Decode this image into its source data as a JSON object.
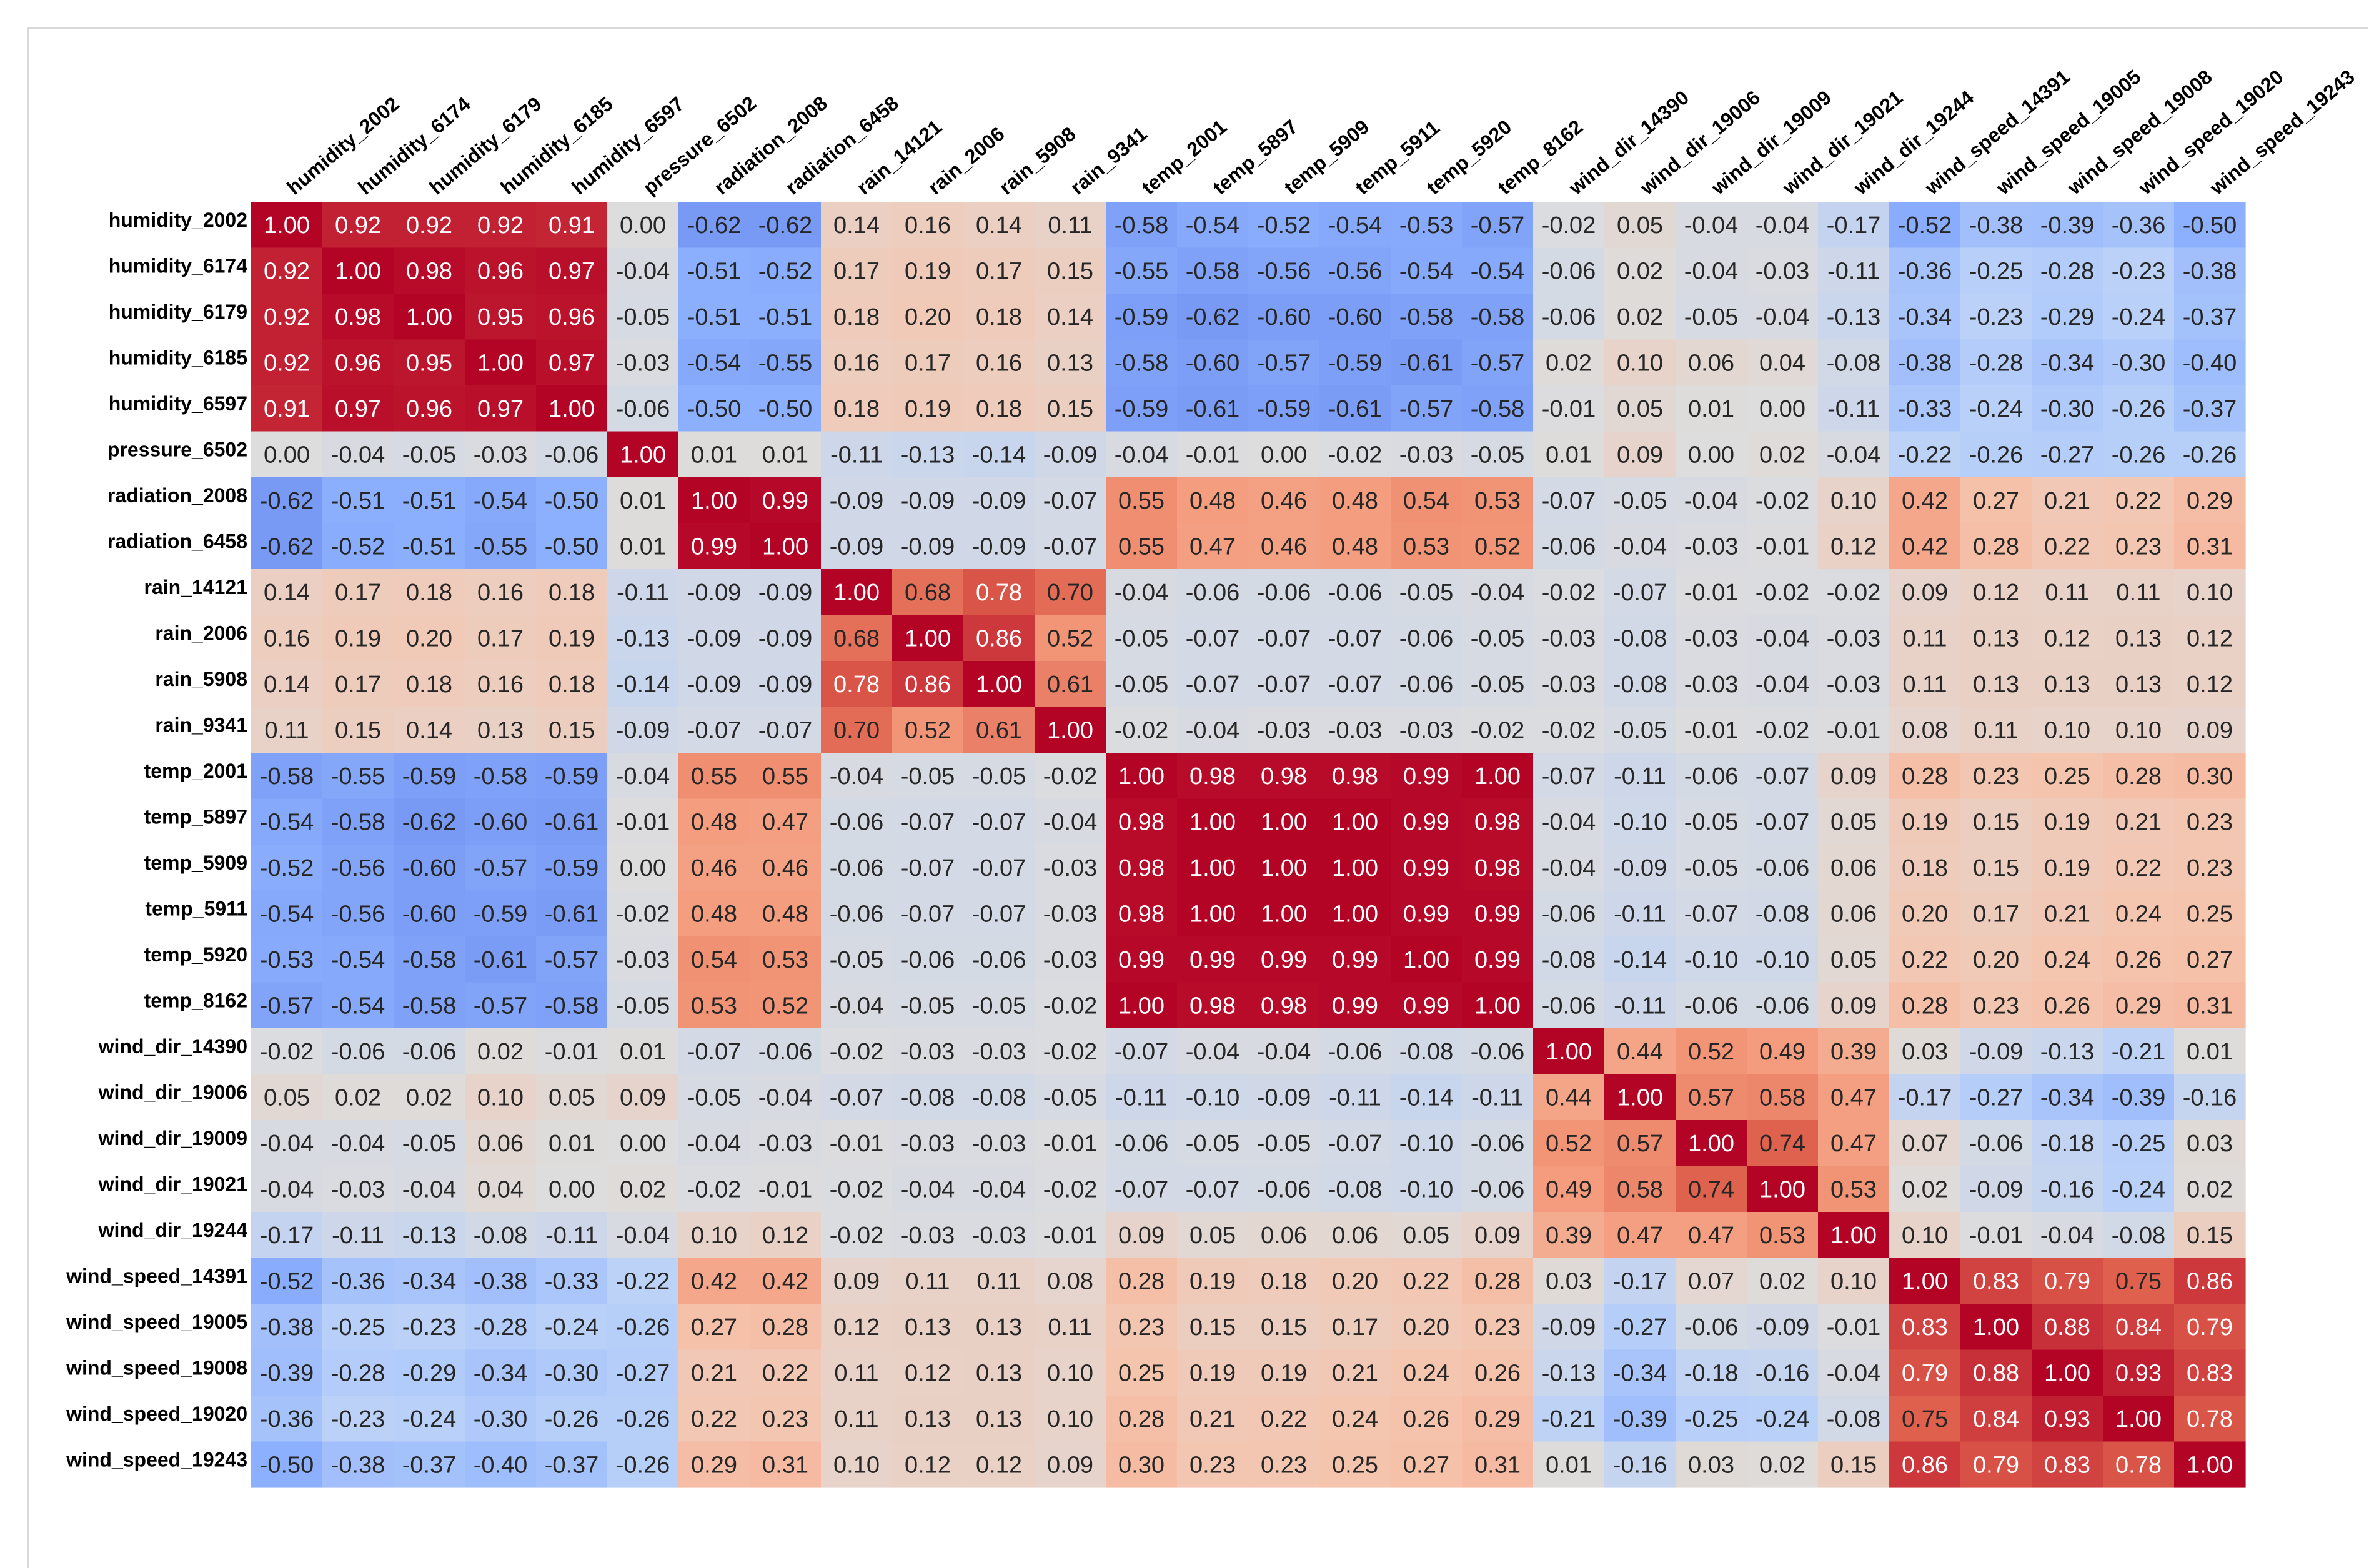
{
  "chart_data": {
    "type": "heatmap",
    "colormap": "coolwarm",
    "vmin": -1,
    "vmax": 1,
    "labels": [
      "humidity_2002",
      "humidity_6174",
      "humidity_6179",
      "humidity_6185",
      "humidity_6597",
      "pressure_6502",
      "radiation_2008",
      "radiation_6458",
      "rain_14121",
      "rain_2006",
      "rain_5908",
      "rain_9341",
      "temp_2001",
      "temp_5897",
      "temp_5909",
      "temp_5911",
      "temp_5920",
      "temp_8162",
      "wind_dir_14390",
      "wind_dir_19006",
      "wind_dir_19009",
      "wind_dir_19021",
      "wind_dir_19244",
      "wind_speed_14391",
      "wind_speed_19005",
      "wind_speed_19008",
      "wind_speed_19020",
      "wind_speed_19243"
    ],
    "matrix": [
      [
        1.0,
        0.92,
        0.92,
        0.92,
        0.91,
        0.0,
        -0.62,
        -0.62,
        0.14,
        0.16,
        0.14,
        0.11,
        -0.58,
        -0.54,
        -0.52,
        -0.54,
        -0.53,
        -0.57,
        -0.02,
        0.05,
        -0.04,
        -0.04,
        -0.17,
        -0.52,
        -0.38,
        -0.39,
        -0.36,
        -0.5
      ],
      [
        0.92,
        1.0,
        0.98,
        0.96,
        0.97,
        -0.04,
        -0.51,
        -0.52,
        0.17,
        0.19,
        0.17,
        0.15,
        -0.55,
        -0.58,
        -0.56,
        -0.56,
        -0.54,
        -0.54,
        -0.06,
        0.02,
        -0.04,
        -0.03,
        -0.11,
        -0.36,
        -0.25,
        -0.28,
        -0.23,
        -0.38
      ],
      [
        0.92,
        0.98,
        1.0,
        0.95,
        0.96,
        -0.05,
        -0.51,
        -0.51,
        0.18,
        0.2,
        0.18,
        0.14,
        -0.59,
        -0.62,
        -0.6,
        -0.6,
        -0.58,
        -0.58,
        -0.06,
        0.02,
        -0.05,
        -0.04,
        -0.13,
        -0.34,
        -0.23,
        -0.29,
        -0.24,
        -0.37
      ],
      [
        0.92,
        0.96,
        0.95,
        1.0,
        0.97,
        -0.03,
        -0.54,
        -0.55,
        0.16,
        0.17,
        0.16,
        0.13,
        -0.58,
        -0.6,
        -0.57,
        -0.59,
        -0.61,
        -0.57,
        0.02,
        0.1,
        0.06,
        0.04,
        -0.08,
        -0.38,
        -0.28,
        -0.34,
        -0.3,
        -0.4
      ],
      [
        0.91,
        0.97,
        0.96,
        0.97,
        1.0,
        -0.06,
        -0.5,
        -0.5,
        0.18,
        0.19,
        0.18,
        0.15,
        -0.59,
        -0.61,
        -0.59,
        -0.61,
        -0.57,
        -0.58,
        -0.01,
        0.05,
        0.01,
        0.0,
        -0.11,
        -0.33,
        -0.24,
        -0.3,
        -0.26,
        -0.37
      ],
      [
        0.0,
        -0.04,
        -0.05,
        -0.03,
        -0.06,
        1.0,
        0.01,
        0.01,
        -0.11,
        -0.13,
        -0.14,
        -0.09,
        -0.04,
        -0.01,
        0.0,
        -0.02,
        -0.03,
        -0.05,
        0.01,
        0.09,
        0.0,
        0.02,
        -0.04,
        -0.22,
        -0.26,
        -0.27,
        -0.26,
        -0.26
      ],
      [
        -0.62,
        -0.51,
        -0.51,
        -0.54,
        -0.5,
        0.01,
        1.0,
        0.99,
        -0.09,
        -0.09,
        -0.09,
        -0.07,
        0.55,
        0.48,
        0.46,
        0.48,
        0.54,
        0.53,
        -0.07,
        -0.05,
        -0.04,
        -0.02,
        0.1,
        0.42,
        0.27,
        0.21,
        0.22,
        0.29
      ],
      [
        -0.62,
        -0.52,
        -0.51,
        -0.55,
        -0.5,
        0.01,
        0.99,
        1.0,
        -0.09,
        -0.09,
        -0.09,
        -0.07,
        0.55,
        0.47,
        0.46,
        0.48,
        0.53,
        0.52,
        -0.06,
        -0.04,
        -0.03,
        -0.01,
        0.12,
        0.42,
        0.28,
        0.22,
        0.23,
        0.31
      ],
      [
        0.14,
        0.17,
        0.18,
        0.16,
        0.18,
        -0.11,
        -0.09,
        -0.09,
        1.0,
        0.68,
        0.78,
        0.7,
        -0.04,
        -0.06,
        -0.06,
        -0.06,
        -0.05,
        -0.04,
        -0.02,
        -0.07,
        -0.01,
        -0.02,
        -0.02,
        0.09,
        0.12,
        0.11,
        0.11,
        0.1
      ],
      [
        0.16,
        0.19,
        0.2,
        0.17,
        0.19,
        -0.13,
        -0.09,
        -0.09,
        0.68,
        1.0,
        0.86,
        0.52,
        -0.05,
        -0.07,
        -0.07,
        -0.07,
        -0.06,
        -0.05,
        -0.03,
        -0.08,
        -0.03,
        -0.04,
        -0.03,
        0.11,
        0.13,
        0.12,
        0.13,
        0.12
      ],
      [
        0.14,
        0.17,
        0.18,
        0.16,
        0.18,
        -0.14,
        -0.09,
        -0.09,
        0.78,
        0.86,
        1.0,
        0.61,
        -0.05,
        -0.07,
        -0.07,
        -0.07,
        -0.06,
        -0.05,
        -0.03,
        -0.08,
        -0.03,
        -0.04,
        -0.03,
        0.11,
        0.13,
        0.13,
        0.13,
        0.12
      ],
      [
        0.11,
        0.15,
        0.14,
        0.13,
        0.15,
        -0.09,
        -0.07,
        -0.07,
        0.7,
        0.52,
        0.61,
        1.0,
        -0.02,
        -0.04,
        -0.03,
        -0.03,
        -0.03,
        -0.02,
        -0.02,
        -0.05,
        -0.01,
        -0.02,
        -0.01,
        0.08,
        0.11,
        0.1,
        0.1,
        0.09
      ],
      [
        -0.58,
        -0.55,
        -0.59,
        -0.58,
        -0.59,
        -0.04,
        0.55,
        0.55,
        -0.04,
        -0.05,
        -0.05,
        -0.02,
        1.0,
        0.98,
        0.98,
        0.98,
        0.99,
        1.0,
        -0.07,
        -0.11,
        -0.06,
        -0.07,
        0.09,
        0.28,
        0.23,
        0.25,
        0.28,
        0.3
      ],
      [
        -0.54,
        -0.58,
        -0.62,
        -0.6,
        -0.61,
        -0.01,
        0.48,
        0.47,
        -0.06,
        -0.07,
        -0.07,
        -0.04,
        0.98,
        1.0,
        1.0,
        1.0,
        0.99,
        0.98,
        -0.04,
        -0.1,
        -0.05,
        -0.07,
        0.05,
        0.19,
        0.15,
        0.19,
        0.21,
        0.23
      ],
      [
        -0.52,
        -0.56,
        -0.6,
        -0.57,
        -0.59,
        0.0,
        0.46,
        0.46,
        -0.06,
        -0.07,
        -0.07,
        -0.03,
        0.98,
        1.0,
        1.0,
        1.0,
        0.99,
        0.98,
        -0.04,
        -0.09,
        -0.05,
        -0.06,
        0.06,
        0.18,
        0.15,
        0.19,
        0.22,
        0.23
      ],
      [
        -0.54,
        -0.56,
        -0.6,
        -0.59,
        -0.61,
        -0.02,
        0.48,
        0.48,
        -0.06,
        -0.07,
        -0.07,
        -0.03,
        0.98,
        1.0,
        1.0,
        1.0,
        0.99,
        0.99,
        -0.06,
        -0.11,
        -0.07,
        -0.08,
        0.06,
        0.2,
        0.17,
        0.21,
        0.24,
        0.25
      ],
      [
        -0.53,
        -0.54,
        -0.58,
        -0.61,
        -0.57,
        -0.03,
        0.54,
        0.53,
        -0.05,
        -0.06,
        -0.06,
        -0.03,
        0.99,
        0.99,
        0.99,
        0.99,
        1.0,
        0.99,
        -0.08,
        -0.14,
        -0.1,
        -0.1,
        0.05,
        0.22,
        0.2,
        0.24,
        0.26,
        0.27
      ],
      [
        -0.57,
        -0.54,
        -0.58,
        -0.57,
        -0.58,
        -0.05,
        0.53,
        0.52,
        -0.04,
        -0.05,
        -0.05,
        -0.02,
        1.0,
        0.98,
        0.98,
        0.99,
        0.99,
        1.0,
        -0.06,
        -0.11,
        -0.06,
        -0.06,
        0.09,
        0.28,
        0.23,
        0.26,
        0.29,
        0.31
      ],
      [
        -0.02,
        -0.06,
        -0.06,
        0.02,
        -0.01,
        0.01,
        -0.07,
        -0.06,
        -0.02,
        -0.03,
        -0.03,
        -0.02,
        -0.07,
        -0.04,
        -0.04,
        -0.06,
        -0.08,
        -0.06,
        1.0,
        0.44,
        0.52,
        0.49,
        0.39,
        0.03,
        -0.09,
        -0.13,
        -0.21,
        0.01
      ],
      [
        0.05,
        0.02,
        0.02,
        0.1,
        0.05,
        0.09,
        -0.05,
        -0.04,
        -0.07,
        -0.08,
        -0.08,
        -0.05,
        -0.11,
        -0.1,
        -0.09,
        -0.11,
        -0.14,
        -0.11,
        0.44,
        1.0,
        0.57,
        0.58,
        0.47,
        -0.17,
        -0.27,
        -0.34,
        -0.39,
        -0.16
      ],
      [
        -0.04,
        -0.04,
        -0.05,
        0.06,
        0.01,
        0.0,
        -0.04,
        -0.03,
        -0.01,
        -0.03,
        -0.03,
        -0.01,
        -0.06,
        -0.05,
        -0.05,
        -0.07,
        -0.1,
        -0.06,
        0.52,
        0.57,
        1.0,
        0.74,
        0.47,
        0.07,
        -0.06,
        -0.18,
        -0.25,
        0.03
      ],
      [
        -0.04,
        -0.03,
        -0.04,
        0.04,
        0.0,
        0.02,
        -0.02,
        -0.01,
        -0.02,
        -0.04,
        -0.04,
        -0.02,
        -0.07,
        -0.07,
        -0.06,
        -0.08,
        -0.1,
        -0.06,
        0.49,
        0.58,
        0.74,
        1.0,
        0.53,
        0.02,
        -0.09,
        -0.16,
        -0.24,
        0.02
      ],
      [
        -0.17,
        -0.11,
        -0.13,
        -0.08,
        -0.11,
        -0.04,
        0.1,
        0.12,
        -0.02,
        -0.03,
        -0.03,
        -0.01,
        0.09,
        0.05,
        0.06,
        0.06,
        0.05,
        0.09,
        0.39,
        0.47,
        0.47,
        0.53,
        1.0,
        0.1,
        -0.01,
        -0.04,
        -0.08,
        0.15
      ],
      [
        -0.52,
        -0.36,
        -0.34,
        -0.38,
        -0.33,
        -0.22,
        0.42,
        0.42,
        0.09,
        0.11,
        0.11,
        0.08,
        0.28,
        0.19,
        0.18,
        0.2,
        0.22,
        0.28,
        0.03,
        -0.17,
        0.07,
        0.02,
        0.1,
        1.0,
        0.83,
        0.79,
        0.75,
        0.86
      ],
      [
        -0.38,
        -0.25,
        -0.23,
        -0.28,
        -0.24,
        -0.26,
        0.27,
        0.28,
        0.12,
        0.13,
        0.13,
        0.11,
        0.23,
        0.15,
        0.15,
        0.17,
        0.2,
        0.23,
        -0.09,
        -0.27,
        -0.06,
        -0.09,
        -0.01,
        0.83,
        1.0,
        0.88,
        0.84,
        0.79
      ],
      [
        -0.39,
        -0.28,
        -0.29,
        -0.34,
        -0.3,
        -0.27,
        0.21,
        0.22,
        0.11,
        0.12,
        0.13,
        0.1,
        0.25,
        0.19,
        0.19,
        0.21,
        0.24,
        0.26,
        -0.13,
        -0.34,
        -0.18,
        -0.16,
        -0.04,
        0.79,
        0.88,
        1.0,
        0.93,
        0.83
      ],
      [
        -0.36,
        -0.23,
        -0.24,
        -0.3,
        -0.26,
        -0.26,
        0.22,
        0.23,
        0.11,
        0.13,
        0.13,
        0.1,
        0.28,
        0.21,
        0.22,
        0.24,
        0.26,
        0.29,
        -0.21,
        -0.39,
        -0.25,
        -0.24,
        -0.08,
        0.75,
        0.84,
        0.93,
        1.0,
        0.78
      ],
      [
        -0.5,
        -0.38,
        -0.37,
        -0.4,
        -0.37,
        -0.26,
        0.29,
        0.31,
        0.1,
        0.12,
        0.12,
        0.09,
        0.3,
        0.23,
        0.23,
        0.25,
        0.27,
        0.31,
        0.01,
        -0.16,
        0.03,
        0.02,
        0.15,
        0.86,
        0.79,
        0.83,
        0.78,
        1.0
      ]
    ]
  }
}
